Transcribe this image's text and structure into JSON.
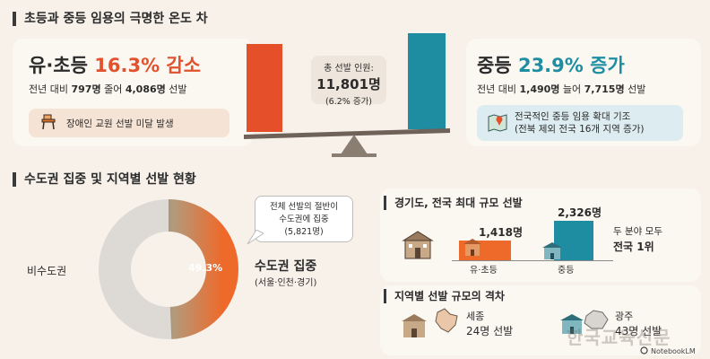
{
  "section1": {
    "title": "초등과 중등 임용의 극명한 온도 차",
    "left": {
      "label": "유·초등",
      "pct": "16.3% 감소",
      "detail_prefix": "전년 대비",
      "detail_bold1": "797명",
      "detail_mid": "줄어",
      "detail_bold2": "4,086명",
      "detail_suffix": "선발",
      "note": "장애인 교원 선발 미달 발생",
      "note_icon": "classroom-desk-icon"
    },
    "center": {
      "line1": "총 선발 인원:",
      "line2": "11,801명",
      "line3": "(6.2% 증가)"
    },
    "right": {
      "label": "중등",
      "pct": "23.9% 증가",
      "detail_prefix": "전년 대비",
      "detail_bold1": "1,490명",
      "detail_mid": "늘어",
      "detail_bold2": "7,715명",
      "detail_suffix": "선발",
      "note_line1": "전국적인 중등 임용 확대 기조",
      "note_line2": "(전북 제외 전국 16개 지역 증가)",
      "note_icon": "map-pin-icon"
    },
    "colors": {
      "red": "#e2522d",
      "blue": "#1f8ea3"
    }
  },
  "section2": {
    "title": "수도권 집중 및 지역별 선발 현황",
    "donut": {
      "capital_share": 49.3,
      "pct_label": "49.3%",
      "non_capital_label": "비수도권",
      "capital_label": "수도권 집중",
      "capital_sub": "(서울·인천·경기)",
      "callout_line1": "전체 선발의 절반이",
      "callout_line2": "수도권에 집중",
      "callout_line3": "(5,821명)"
    },
    "gyeonggi": {
      "title": "경기도, 전국 최대 규모 선발",
      "elem_value": "1,418명",
      "elem_label": "유·초등",
      "mid_value": "2,326명",
      "mid_label": "중등",
      "note_line1": "두 분야 모두",
      "note_line2": "전국 1위"
    },
    "gap": {
      "title": "지역별 선발 규모의 격차",
      "sejong_name": "세종",
      "sejong_value": "24명 선발",
      "gwangju_name": "광주",
      "gwangju_value": "43명 선발"
    }
  },
  "footer": {
    "brand": "NotebookLM",
    "watermark": "한국교육신문"
  }
}
